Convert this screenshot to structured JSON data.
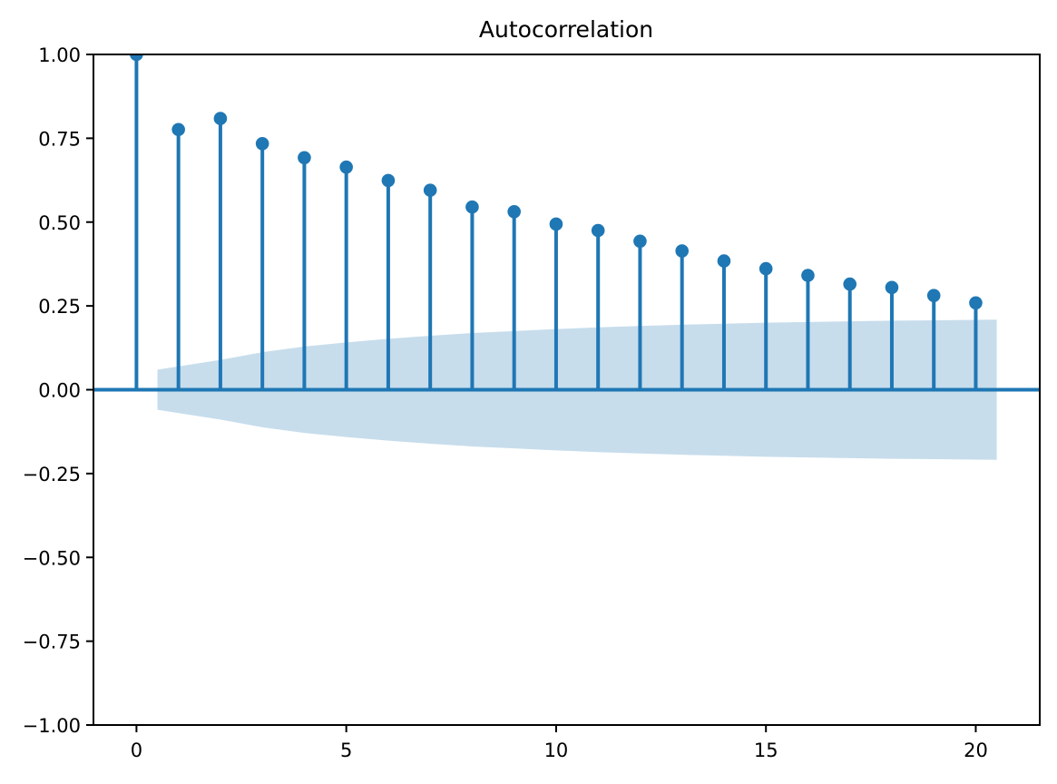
{
  "figure": {
    "background": "#ffffff"
  },
  "colors": {
    "series": "#1f77b4",
    "band_fill": "#1f77b4",
    "band_opacity": 0.25,
    "zero_line": "#1f77b4",
    "spine": "#000000",
    "text": "#000000"
  },
  "chart_data": {
    "type": "stem",
    "title": "Autocorrelation",
    "xlabel": "",
    "ylabel": "",
    "grid": false,
    "legend": null,
    "x": [
      0,
      1,
      2,
      3,
      4,
      5,
      6,
      7,
      8,
      9,
      10,
      11,
      12,
      13,
      14,
      15,
      16,
      17,
      18,
      19,
      20
    ],
    "values": [
      1.0,
      0.776,
      0.809,
      0.734,
      0.692,
      0.664,
      0.624,
      0.595,
      0.545,
      0.531,
      0.494,
      0.475,
      0.443,
      0.414,
      0.384,
      0.361,
      0.341,
      0.315,
      0.305,
      0.281,
      0.259
    ],
    "confidence_band": {
      "x": [
        0.5,
        2,
        3,
        4,
        5,
        6,
        7,
        8,
        9,
        10,
        11,
        12,
        13,
        14,
        15,
        16,
        17,
        18,
        19,
        20.5
      ],
      "upper": [
        0.06,
        0.089,
        0.112,
        0.129,
        0.141,
        0.152,
        0.161,
        0.169,
        0.175,
        0.181,
        0.186,
        0.19,
        0.194,
        0.197,
        0.2,
        0.202,
        0.204,
        0.206,
        0.207,
        0.209
      ],
      "lower": [
        -0.06,
        -0.089,
        -0.112,
        -0.129,
        -0.141,
        -0.152,
        -0.161,
        -0.169,
        -0.175,
        -0.181,
        -0.186,
        -0.19,
        -0.194,
        -0.197,
        -0.2,
        -0.202,
        -0.204,
        -0.206,
        -0.207,
        -0.209
      ]
    },
    "xlim": [
      -1.025,
      21.525
    ],
    "ylim": [
      -1.0,
      1.0
    ],
    "xticks": [
      0,
      5,
      10,
      15,
      20
    ],
    "xtick_labels": [
      "0",
      "5",
      "10",
      "15",
      "20"
    ],
    "yticks": [
      1.0,
      0.75,
      0.5,
      0.25,
      0.0,
      -0.25,
      -0.5,
      -0.75,
      -1.0
    ],
    "ytick_labels": [
      "1.00",
      "0.75",
      "0.50",
      "0.25",
      "0.00",
      "−0.25",
      "−0.50",
      "−0.75",
      "−1.00"
    ]
  }
}
